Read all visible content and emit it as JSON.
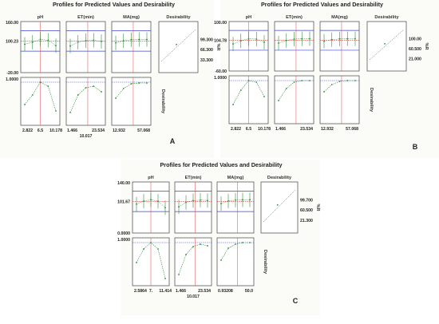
{
  "chart_data": [
    {
      "type": "line",
      "panel": "A",
      "title": "Profiles for Predicted Values and Desirability",
      "factors": [
        {
          "name": "pH",
          "ticks": [
            "2.822",
            "6.5",
            "10.178"
          ],
          "current": "6.5",
          "curve": [
            72,
            84,
            100,
            95,
            64
          ]
        },
        {
          "name": "ET(min)",
          "ticks": [
            "1.466",
            "23.534"
          ],
          "below": "10.017",
          "current": "10.017",
          "curve": [
            62,
            84,
            93,
            95,
            88
          ]
        },
        {
          "name": "MA(mg)",
          "ticks": [
            "12.932",
            "57.068"
          ],
          "current": "35",
          "curve": [
            80,
            92,
            98,
            99,
            99
          ]
        }
      ],
      "response": {
        "label": "%R",
        "ticks": [
          "160.00",
          "100.23",
          "-20.00"
        ],
        "current": "100.23",
        "range": [
          -20,
          160
        ]
      },
      "desirability": {
        "label": "Desirability",
        "top": "1.0000",
        "ticks": [
          "99.300",
          "66.300",
          "33.300"
        ],
        "range": [
          0,
          1
        ]
      }
    },
    {
      "type": "line",
      "panel": "B",
      "title": "Profiles for Predicted Values and Desirability",
      "factors": [
        {
          "name": "pH",
          "ticks": [
            "2.822",
            "6.5",
            "10.178"
          ],
          "current": "6.5",
          "curve": [
            70,
            88,
            100,
            98,
            80
          ]
        },
        {
          "name": "ET(min)",
          "ticks": [
            "1.466",
            "23.534"
          ],
          "current": "20",
          "curve": [
            75,
            90,
            98,
            100,
            100
          ]
        },
        {
          "name": "MA(mg)",
          "ticks": [
            "12.932",
            "57.068"
          ],
          "current": "40",
          "curve": [
            86,
            95,
            99,
            100,
            100
          ]
        }
      ],
      "response": {
        "label": "%R",
        "ticks": [
          "100.00",
          "104.78",
          "-60.00"
        ],
        "current": "104.78",
        "range": [
          -60,
          140
        ]
      },
      "desirability": {
        "label": "Desirability",
        "top": "1.0000",
        "ticks": [
          "100.00",
          "60.500",
          "21.000"
        ],
        "range": [
          0,
          1
        ]
      }
    },
    {
      "type": "line",
      "panel": "C",
      "title": "Profiles for Predicted Values and Desirability",
      "factors": [
        {
          "name": "pH",
          "ticks": [
            "2.5864",
            "7.",
            "11.414"
          ],
          "current": "7.",
          "curve": [
            75,
            92,
            100,
            92,
            55
          ]
        },
        {
          "name": "ET(min)",
          "ticks": [
            "1.466",
            "23.534"
          ],
          "below": "10.017",
          "current": "10.017",
          "curve": [
            60,
            85,
            95,
            98,
            96
          ]
        },
        {
          "name": "MA(mg)",
          "ticks": [
            "0.93208",
            "50.0"
          ],
          "current": "25",
          "curve": [
            78,
            93,
            98,
            100,
            100
          ]
        }
      ],
      "response": {
        "label": "%R",
        "ticks": [
          "140.00",
          "101.67",
          "0.0000"
        ],
        "current": "101.67",
        "range": [
          0,
          140
        ]
      },
      "desirability": {
        "label": "Desirability",
        "top": "1.0000",
        "ticks": [
          "99.700",
          "60.500",
          "21.300"
        ],
        "range": [
          0,
          1
        ]
      }
    }
  ]
}
